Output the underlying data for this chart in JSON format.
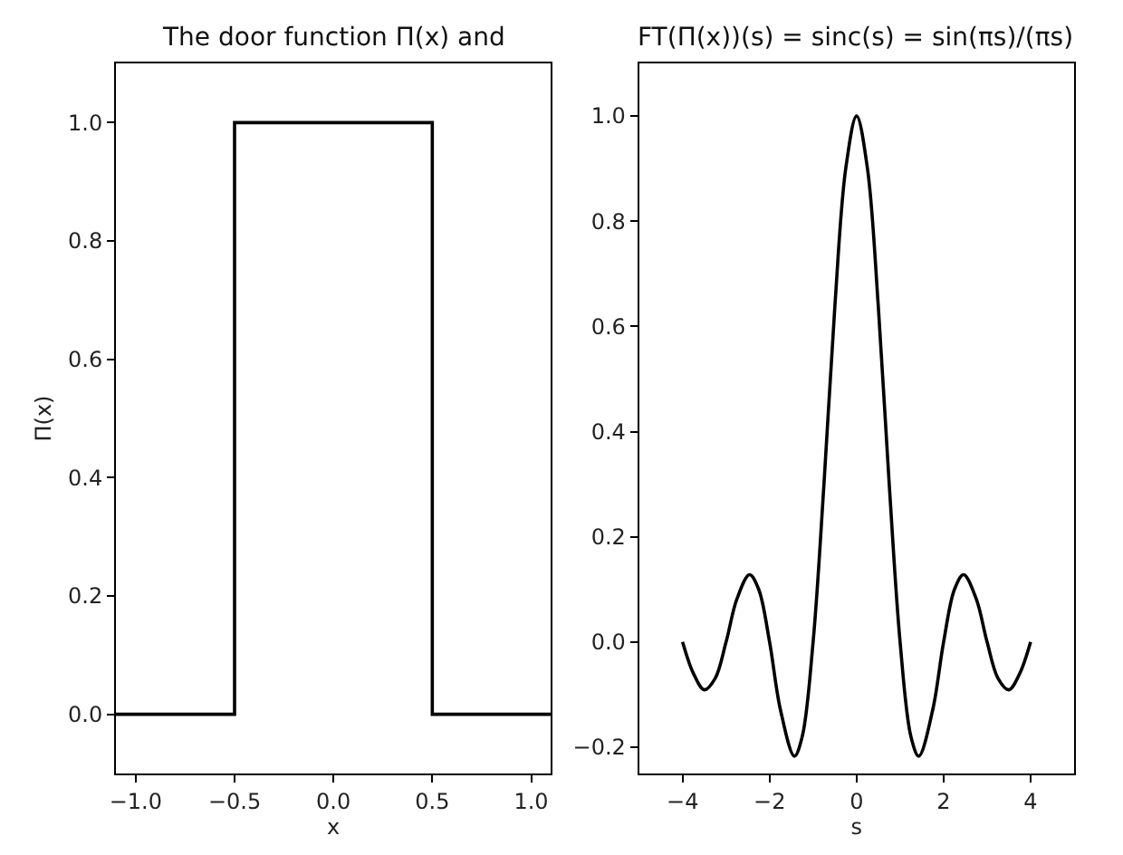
{
  "chart_data": [
    {
      "type": "line",
      "title": "The door function Π(x) and",
      "xlabel": "x",
      "ylabel": "Π(x)",
      "series": [
        {
          "color": "#000000",
          "x": [
            -1.1,
            -0.5,
            -0.5,
            0.5,
            0.5,
            1.1
          ],
          "values": [
            0,
            0,
            1,
            1,
            0,
            0
          ]
        }
      ],
      "xlim": [
        -1.1,
        1.1
      ],
      "ylim": [
        -0.1,
        1.1
      ],
      "xticks": [
        {
          "value": -1.0,
          "label": "−1.0"
        },
        {
          "value": -0.5,
          "label": "−0.5"
        },
        {
          "value": 0,
          "label": "0.0"
        },
        {
          "value": 0.5,
          "label": "0.5"
        },
        {
          "value": 1.0,
          "label": "1.0"
        }
      ],
      "yticks": [
        {
          "value": 0,
          "label": "0.0"
        },
        {
          "value": 0.2,
          "label": "0.2"
        },
        {
          "value": 0.4,
          "label": "0.4"
        },
        {
          "value": 0.6,
          "label": "0.6"
        },
        {
          "value": 0.8,
          "label": "0.8"
        },
        {
          "value": 1.0,
          "label": "1.0"
        }
      ]
    },
    {
      "type": "line",
      "title": "FT(Π(x))(s) = sinc(s) = sin(πs)/(πs)",
      "xlabel": "s",
      "series": [
        {
          "color": "#000000",
          "x": [
            -4,
            -3.75,
            -3.5,
            -3.25,
            -3,
            -2.75,
            -2.46,
            -2.25,
            -2,
            -1.75,
            -1.43,
            -1.25,
            -1,
            -0.75,
            -0.5,
            -0.25,
            0,
            0.25,
            0.5,
            0.75,
            1,
            1.25,
            1.43,
            1.75,
            2,
            2.25,
            2.46,
            2.75,
            3,
            3.25,
            3.5,
            3.75,
            4
          ],
          "values": [
            0,
            -0.06,
            -0.091,
            -0.069,
            0,
            0.082,
            0.128,
            0.1,
            0,
            -0.129,
            -0.217,
            -0.18,
            0,
            0.3,
            0.637,
            0.9,
            1,
            0.9,
            0.637,
            0.3,
            0,
            -0.18,
            -0.217,
            -0.129,
            0,
            0.1,
            0.128,
            0.082,
            0,
            -0.069,
            -0.091,
            -0.06,
            0
          ]
        }
      ],
      "xlim": [
        -5,
        5
      ],
      "ylim": [
        -0.25,
        1.1
      ],
      "xticks": [
        {
          "value": -4,
          "label": "−4"
        },
        {
          "value": -2,
          "label": "−2"
        },
        0,
        2,
        4
      ],
      "yticks": [
        {
          "value": -0.2,
          "label": "−0.2"
        },
        {
          "value": 0,
          "label": "0.0"
        },
        {
          "value": 0.2,
          "label": "0.2"
        },
        {
          "value": 0.4,
          "label": "0.4"
        },
        {
          "value": 0.6,
          "label": "0.6"
        },
        {
          "value": 0.8,
          "label": "0.8"
        },
        {
          "value": 1.0,
          "label": "1.0"
        }
      ]
    }
  ]
}
